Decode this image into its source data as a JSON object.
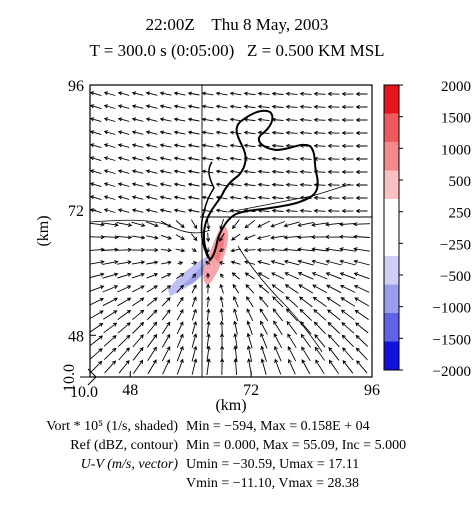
{
  "header": {
    "line1": "22:00Z    Thu 8 May, 2003",
    "line2": "T = 300.0 s (0:05:00)   Z = 0.500 KM MSL"
  },
  "chart_data": {
    "type": "heatmap",
    "xlabel": "(km)",
    "ylabel": "(km)",
    "xlim": [
      40,
      96
    ],
    "ylim": [
      40,
      96
    ],
    "xticks": [
      "48",
      "72",
      "96"
    ],
    "yticks": [
      "48",
      "72",
      "96"
    ],
    "origin_labels": {
      "x": "10.0",
      "y": "10.0"
    },
    "colorbar": {
      "labels": [
        "2000",
        "1500",
        "1000",
        "500",
        "250",
        "−250",
        "−500",
        "−1000",
        "−1500",
        "−2000"
      ],
      "colors": [
        "#e8141e",
        "#ef5a5f",
        "#f3898d",
        "#f9c0c3",
        "#ffffff",
        "#ffffff",
        "#cfd0f5",
        "#9b9ded",
        "#6062e6",
        "#1212dd"
      ]
    },
    "shaded_field": "Vort * 10^5 (1/s)",
    "contour_field": "Ref (dBZ)",
    "vector_field": "U-V (m/s)"
  },
  "legend": {
    "vort": {
      "label": "Vort * 10⁵ (1/s, shaded)",
      "stats": "Min = −594, Max = 0.158E + 04"
    },
    "ref": {
      "label": "Ref (dBZ, contour)",
      "stats": "Min = 0.000, Max = 55.09, Inc = 5.000"
    },
    "uv": {
      "label": "U-V (m/s, vector)",
      "stats_u": "Umin = −30.59, Umax = 17.11",
      "stats_v": "Vmin = −11.10, Vmax = 28.38"
    }
  }
}
